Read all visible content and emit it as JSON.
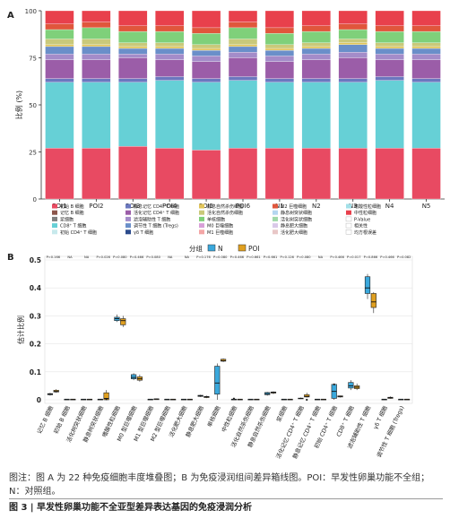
{
  "panel_a_label": "A",
  "panel_b_label": "B",
  "caption_line1": "图注：图 A 为 22 种免疫细胞丰度堆叠图；B 为免疫浸润组间差异箱线图。POI：早发性卵巢功能不全组；N：对照组。",
  "figure_title": "图 3 | 早发性卵巢功能不全亚型差异表达基因的免疫浸润分析",
  "chart_data": [
    {
      "type": "stacked-bar",
      "panel": "A",
      "ylabel": "比例 (%)",
      "ylim": [
        0,
        100
      ],
      "yticks": [
        0,
        25,
        50,
        75,
        100
      ],
      "grid": false,
      "legend_position": "bottom",
      "categories": [
        "POI1",
        "POI2",
        "POI3",
        "POI4",
        "POI5",
        "POI6",
        "N1",
        "N2",
        "N3",
        "N4",
        "N5"
      ],
      "series": [
        {
          "name": "初始 B 细胞",
          "color": "#e84a62",
          "values": [
            27,
            27,
            28,
            27,
            26,
            27,
            27,
            27,
            27,
            27,
            27
          ]
        },
        {
          "name": "记忆 B 细胞",
          "color": "#8c564b",
          "values": [
            0,
            0,
            0,
            0,
            0,
            0,
            0,
            0,
            0,
            0,
            0
          ]
        },
        {
          "name": "浆细胞",
          "color": "#7f7f7f",
          "values": [
            0,
            0,
            0,
            0,
            0,
            0,
            0,
            0,
            0,
            0,
            0
          ]
        },
        {
          "name": "CD8⁺ T 细胞",
          "color": "#66d0d6",
          "values": [
            35,
            35,
            34,
            36,
            36,
            36,
            35,
            35,
            35,
            36,
            35
          ]
        },
        {
          "name": "初始 CD4⁺ T 细胞",
          "color": "#c7e9ec",
          "values": [
            0,
            0,
            0,
            0,
            0,
            0,
            0,
            0,
            0,
            0,
            0
          ]
        },
        {
          "name": "静息记忆 CD4⁺ T 细胞",
          "color": "#6b78bf",
          "values": [
            2,
            2,
            2,
            2,
            2,
            2,
            2,
            2,
            2,
            2,
            2
          ]
        },
        {
          "name": "活化记忆 CD4⁺ T 细胞",
          "color": "#9b5da8",
          "values": [
            10,
            10,
            11,
            9,
            9,
            10,
            9,
            10,
            11,
            9,
            10
          ]
        },
        {
          "name": "滤泡辅助性 T 细胞",
          "color": "#a48cc9",
          "values": [
            3,
            3,
            2,
            3,
            3,
            3,
            3,
            3,
            3,
            3,
            3
          ]
        },
        {
          "name": "调节性 T 细胞 (Tregs)",
          "color": "#6a8fc9",
          "values": [
            4,
            4,
            3,
            3,
            3,
            3,
            3,
            3,
            4,
            3,
            3
          ]
        },
        {
          "name": "γδ T 细胞",
          "color": "#2b4a8c",
          "values": [
            0,
            0,
            0,
            0,
            0,
            0,
            0,
            0,
            0,
            0,
            0
          ]
        },
        {
          "name": "静息自然杀伤细胞",
          "color": "#e0c45a",
          "values": [
            1,
            1,
            1,
            1,
            1,
            1,
            1,
            1,
            1,
            1,
            1
          ]
        },
        {
          "name": "活化自然杀伤细胞",
          "color": "#c9c97a",
          "values": [
            3,
            3,
            2,
            2,
            2,
            3,
            2,
            2,
            2,
            2,
            2
          ]
        },
        {
          "name": "单核细胞",
          "color": "#7fd07a",
          "values": [
            5,
            6,
            6,
            6,
            6,
            6,
            6,
            6,
            5,
            6,
            6
          ]
        },
        {
          "name": "M0 巨噬细胞",
          "color": "#d8a0d8",
          "values": [
            0,
            0,
            0,
            0,
            0,
            0,
            0,
            0,
            0,
            0,
            0
          ]
        },
        {
          "name": "M1 巨噬细胞",
          "color": "#f4a6a6",
          "values": [
            0,
            0,
            0,
            0,
            0,
            0,
            0,
            0,
            0,
            0,
            0
          ]
        },
        {
          "name": "M2 巨噬细胞",
          "color": "#e0563c",
          "values": [
            3,
            3,
            3,
            3,
            3,
            3,
            3,
            3,
            3,
            3,
            3
          ]
        },
        {
          "name": "静息树突状细胞",
          "color": "#b4d6f0",
          "values": [
            0,
            0,
            0,
            0,
            0,
            0,
            0,
            0,
            0,
            0,
            0
          ]
        },
        {
          "name": "活化树突状细胞",
          "color": "#9fd8a8",
          "values": [
            0,
            0,
            0,
            0,
            0,
            0,
            0,
            0,
            0,
            0,
            0
          ]
        },
        {
          "name": "静息肥大细胞",
          "color": "#d9c9e8",
          "values": [
            0,
            0,
            0,
            0,
            0,
            0,
            0,
            0,
            0,
            0,
            0
          ]
        },
        {
          "name": "活化肥大细胞",
          "color": "#e8c7c7",
          "values": [
            0,
            0,
            0,
            0,
            0,
            0,
            0,
            0,
            0,
            0,
            0
          ]
        },
        {
          "name": "嗜酸性粒细胞",
          "color": "#a3e0e8",
          "values": [
            0,
            0,
            0,
            0,
            0,
            0,
            0,
            0,
            0,
            0,
            0
          ]
        },
        {
          "name": "中性粒细胞",
          "color": "#e8404c",
          "values": [
            7,
            6,
            8,
            8,
            9,
            6,
            9,
            8,
            7,
            8,
            8
          ]
        }
      ],
      "legend_extra": [
        "P-Value",
        "相关性",
        "均方根误差"
      ]
    },
    {
      "type": "boxplot",
      "panel": "B",
      "ylabel": "估计比例",
      "ylim": [
        0,
        0.5
      ],
      "yticks": [
        0,
        0.1,
        0.2,
        0.3,
        0.4,
        0.5
      ],
      "grid": true,
      "legend_title": "分组",
      "legend_position": "top",
      "groups": [
        {
          "name": "N",
          "color": "#3aa8dc"
        },
        {
          "name": "POI",
          "color": "#e0a020"
        }
      ],
      "categories": [
        "记忆 B 细胞",
        "初始 B 细胞",
        "活化树突状细胞",
        "静息树突状细胞",
        "嗜酸性粒细胞",
        "M0 型巨噬细胞",
        "M1 型巨噬细胞",
        "M2 型巨噬细胞",
        "活化肥大细胞",
        "静息肥大细胞",
        "单核细胞",
        "中性粒细胞",
        "活化自然杀伤细胞",
        "静息自然杀伤细胞",
        "浆细胞",
        "活化记忆 CD4⁺ T 细胞",
        "静息记忆 CD4⁺ T 细胞",
        "初始 CD4⁺ T 细胞",
        "CD8⁺ T 细胞",
        "滤泡辅助性 T 细胞",
        "γδ T 细胞",
        "调节性 T 细胞 (Tregs)"
      ],
      "p_values": [
        "P=0.166",
        "NA",
        "NA",
        "P=0.026",
        "P=0.080",
        "P=0.466",
        "P=0.080",
        "NA",
        "NA",
        "P=0.176",
        "P=0.080",
        "P=0.466",
        "P=0.661",
        "P=0.661",
        "P=0.126",
        "P=0.080",
        "NA",
        "P=0.466",
        "P=0.017",
        "P=0.866",
        "P=0.466",
        "P=0.082"
      ],
      "boxes": [
        {
          "N": [
            0.015,
            0.018,
            0.02,
            0.022,
            0.025
          ],
          "POI": [
            0.025,
            0.028,
            0.03,
            0.034,
            0.038
          ]
        },
        {
          "N": [
            0.002,
            0.002,
            0.002,
            0.002,
            0.003
          ],
          "POI": [
            0.002,
            0.002,
            0.002,
            0.002,
            0.003
          ]
        },
        {
          "N": [
            0.002,
            0.002,
            0.002,
            0.002,
            0.003
          ],
          "POI": [
            0.002,
            0.002,
            0.002,
            0.002,
            0.003
          ]
        },
        {
          "N": [
            0.001,
            0.002,
            0.002,
            0.002,
            0.003
          ],
          "POI": [
            0.0,
            0.0,
            0.005,
            0.025,
            0.035
          ]
        },
        {
          "N": [
            0.278,
            0.283,
            0.29,
            0.295,
            0.305
          ],
          "POI": [
            0.26,
            0.268,
            0.283,
            0.29,
            0.3
          ]
        },
        {
          "N": [
            0.07,
            0.075,
            0.08,
            0.09,
            0.095
          ],
          "POI": [
            0.065,
            0.07,
            0.075,
            0.082,
            0.09
          ]
        },
        {
          "N": [
            0.002,
            0.002,
            0.002,
            0.002,
            0.003
          ],
          "POI": [
            0.002,
            0.002,
            0.003,
            0.003,
            0.004
          ]
        },
        {
          "N": [
            0.002,
            0.002,
            0.002,
            0.002,
            0.003
          ],
          "POI": [
            0.002,
            0.002,
            0.002,
            0.002,
            0.003
          ]
        },
        {
          "N": [
            0.002,
            0.002,
            0.002,
            0.002,
            0.003
          ],
          "POI": [
            0.002,
            0.002,
            0.002,
            0.002,
            0.003
          ]
        },
        {
          "N": [
            0.01,
            0.012,
            0.014,
            0.016,
            0.018
          ],
          "POI": [
            0.006,
            0.008,
            0.01,
            0.012,
            0.015
          ]
        },
        {
          "N": [
            0.0,
            0.02,
            0.06,
            0.12,
            0.13
          ],
          "POI": [
            0.135,
            0.138,
            0.14,
            0.145,
            0.148
          ]
        },
        {
          "N": [
            0.002,
            0.002,
            0.002,
            0.002,
            0.003
          ],
          "POI": [
            0.002,
            0.002,
            0.002,
            0.002,
            0.003
          ]
        },
        {
          "N": [
            0.002,
            0.002,
            0.002,
            0.002,
            0.003
          ],
          "POI": [
            0.002,
            0.002,
            0.002,
            0.002,
            0.003
          ]
        },
        {
          "N": [
            0.015,
            0.018,
            0.022,
            0.026,
            0.028
          ],
          "POI": [
            0.02,
            0.024,
            0.026,
            0.028,
            0.03
          ]
        },
        {
          "N": [
            0.002,
            0.002,
            0.002,
            0.002,
            0.003
          ],
          "POI": [
            0.002,
            0.002,
            0.002,
            0.002,
            0.003
          ]
        },
        {
          "N": [
            0.003,
            0.004,
            0.005,
            0.006,
            0.008
          ],
          "POI": [
            0.008,
            0.01,
            0.012,
            0.018,
            0.025
          ]
        },
        {
          "N": [
            0.002,
            0.002,
            0.002,
            0.002,
            0.003
          ],
          "POI": [
            0.002,
            0.002,
            0.002,
            0.002,
            0.003
          ]
        },
        {
          "N": [
            0.0,
            0.005,
            0.03,
            0.055,
            0.058
          ],
          "POI": [
            0.008,
            0.01,
            0.012,
            0.014,
            0.015
          ]
        },
        {
          "N": [
            0.035,
            0.042,
            0.05,
            0.062,
            0.07
          ],
          "POI": [
            0.035,
            0.04,
            0.045,
            0.05,
            0.058
          ]
        },
        {
          "N": [
            0.36,
            0.38,
            0.4,
            0.44,
            0.45
          ],
          "POI": [
            0.31,
            0.33,
            0.35,
            0.38,
            0.385
          ]
        },
        {
          "N": [
            0.002,
            0.002,
            0.002,
            0.002,
            0.003
          ],
          "POI": [
            0.004,
            0.005,
            0.007,
            0.009,
            0.012
          ]
        },
        {
          "N": [
            0.002,
            0.002,
            0.002,
            0.002,
            0.003
          ],
          "POI": [
            0.002,
            0.002,
            0.002,
            0.002,
            0.003
          ]
        }
      ],
      "outliers": [
        {
          "category": 3,
          "group": "POI",
          "value": 0.002
        },
        {
          "category": 11,
          "group": "N",
          "value": 0.004
        },
        {
          "category": 15,
          "group": "POI",
          "value": 0.0
        },
        {
          "category": 17,
          "group": "N",
          "value": 0.055
        }
      ]
    }
  ]
}
